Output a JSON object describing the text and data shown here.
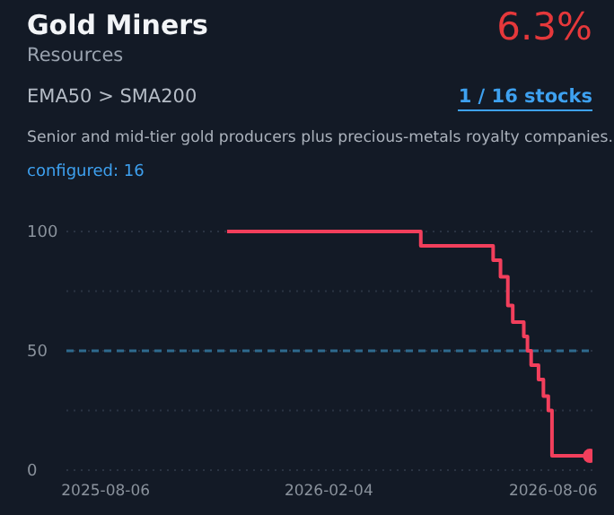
{
  "chart_data": {
    "type": "step",
    "title": "Gold Miners",
    "subtitle": "Resources",
    "annotations": [
      "6.3%",
      "EMA50 > SMA200",
      "1 / 16 stocks",
      "Senior and mid-tier gold producers plus precious-metals royalty companies.",
      "configured: 16"
    ],
    "series": [
      {
        "color": "#f23f5c",
        "x": [
          "2025-11-13",
          "2026-04-20",
          "2026-06-18",
          "2026-06-24",
          "2026-06-30",
          "2026-07-04",
          "2026-07-13",
          "2026-07-16",
          "2026-07-19",
          "2026-07-25",
          "2026-07-29",
          "2026-08-02",
          "2026-08-05",
          "2026-09-05"
        ],
        "values": [
          100,
          94,
          88,
          81,
          69,
          62,
          56,
          50,
          44,
          38,
          31,
          25,
          6,
          6
        ]
      },
      {
        "type": "scatter",
        "marker": "circle",
        "color": "#f23f5c",
        "x": [
          "2026-09-05"
        ],
        "values": [
          6
        ]
      }
    ],
    "xlim": [
      "2025-07-05",
      "2026-09-07"
    ],
    "xticks": [
      "2025-08-06",
      "2026-02-04",
      "2026-08-06"
    ],
    "ylim": [
      0,
      100
    ],
    "yticks": [
      0,
      {
        "value": 25,
        "label": null
      },
      50,
      {
        "value": 75,
        "label": null
      },
      100
    ],
    "grid": "y",
    "ref_lines": [
      {
        "axis": "y",
        "value": 50,
        "color": "#2e6a8e",
        "line_style": "dashed"
      }
    ],
    "line_style": "solid"
  }
}
